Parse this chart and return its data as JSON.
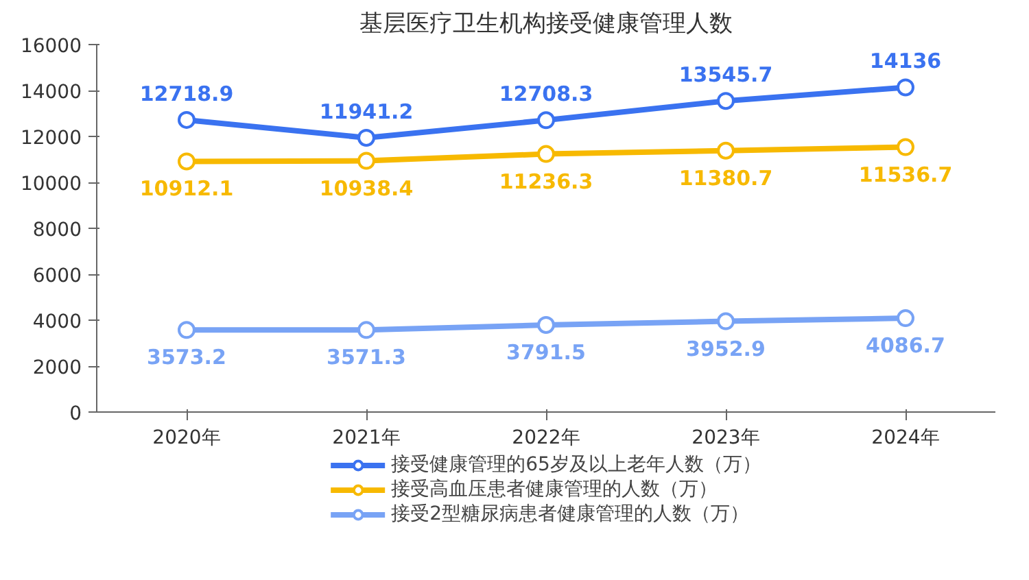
{
  "chart_data": {
    "type": "line",
    "title": "基层医疗卫生机构接受健康管理人数",
    "categories": [
      "2020年",
      "2021年",
      "2022年",
      "2023年",
      "2024年"
    ],
    "series": [
      {
        "name": "接受健康管理的65岁及以上老年人数（万）",
        "color": "#3a72f0",
        "values": [
          12718.9,
          11941.2,
          12708.3,
          13545.7,
          14136
        ]
      },
      {
        "name": "接受高血压患者健康管理的人数（万）",
        "color": "#f7b900",
        "values": [
          10912.1,
          10938.4,
          11236.3,
          11380.7,
          11536.7
        ]
      },
      {
        "name": "接受2型糖尿病患者健康管理的人数（万）",
        "color": "#78a3f5",
        "values": [
          3573.2,
          3571.3,
          3791.5,
          3952.9,
          4086.7
        ]
      }
    ],
    "ylim": [
      0,
      16000
    ],
    "yticks": [
      0,
      2000,
      4000,
      6000,
      8000,
      10000,
      12000,
      14000,
      16000
    ],
    "data_labels": true,
    "legend": "bottom",
    "grid": false,
    "marker": "circle",
    "line_style": "solid"
  }
}
